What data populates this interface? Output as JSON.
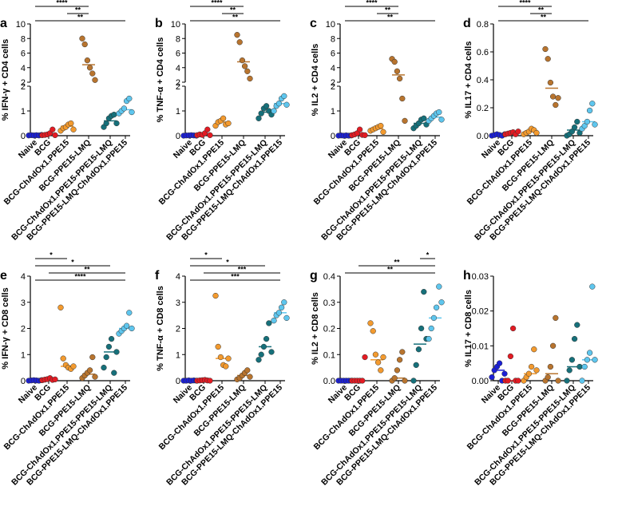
{
  "figure": {
    "groups": [
      "Naive",
      "BCG",
      "BCG-ChAdOx1.PPE15",
      "BCG-PPE15-LMQ",
      "BCG-ChAdOx1.PPE15-PPE15-LMQ",
      "BCG-PPE15-LMQ-ChAdOx1.PPE15"
    ],
    "group_colors": [
      "#1b1fd6",
      "#e31b23",
      "#f39a2e",
      "#b8742e",
      "#16707a",
      "#5ec6ee"
    ]
  },
  "chart_data": [
    {
      "type": "scatter",
      "panel": "a",
      "ylabel": "% IFN-γ + CD4 cells",
      "y_axis": {
        "break": true,
        "upper": [
          2,
          10
        ],
        "lower": [
          0,
          2
        ],
        "upper_ticks": [
          2,
          4,
          6,
          8,
          10
        ],
        "lower_ticks": [
          0,
          1,
          2
        ]
      },
      "series": [
        {
          "name": "Naive",
          "values": [
            0.01,
            0.02,
            0.01,
            0.02,
            0.01,
            0.03
          ],
          "mean": 0.02
        },
        {
          "name": "BCG",
          "values": [
            0.02,
            0.03,
            0.05,
            0.1,
            0.25,
            0.02
          ],
          "mean": 0.08
        },
        {
          "name": "BCG-ChAdOx1.PPE15",
          "values": [
            0.2,
            0.3,
            0.35,
            0.45,
            0.5,
            0.25
          ],
          "mean": 0.38
        },
        {
          "name": "BCG-PPE15-LMQ",
          "values": [
            8.0,
            7.2,
            5.0,
            4.0,
            3.2,
            2.3
          ],
          "mean": 4.4
        },
        {
          "name": "BCG-ChAdOx1.PPE15-PPE15-LMQ",
          "values": [
            0.35,
            0.5,
            0.7,
            0.8,
            0.85,
            0.5
          ],
          "mean": 0.6
        },
        {
          "name": "BCG-PPE15-LMQ-ChAdOx1.PPE15",
          "values": [
            0.9,
            1.0,
            1.1,
            1.4,
            1.5,
            0.95
          ],
          "mean": 1.05
        }
      ],
      "significance": [
        {
          "from": "Naive",
          "to": "BCG-PPE15-LMQ",
          "label": "****"
        },
        {
          "from": "BCG-ChAdOx1.PPE15",
          "to": "BCG-PPE15-LMQ",
          "label": "**"
        },
        {
          "from": "Naive",
          "to": "BCG-PPE15-LMQ-ChAdOx1.PPE15",
          "label": "**"
        }
      ]
    },
    {
      "type": "scatter",
      "panel": "b",
      "ylabel": "% TNF-α + CD4 cells",
      "y_axis": {
        "break": true,
        "upper": [
          2,
          10
        ],
        "lower": [
          0,
          2
        ],
        "upper_ticks": [
          2,
          4,
          6,
          8,
          10
        ],
        "lower_ticks": [
          0,
          1,
          2
        ]
      },
      "series": [
        {
          "name": "Naive",
          "values": [
            0.0,
            0.01,
            0.01,
            0.02,
            0.01,
            0.0
          ],
          "mean": 0.01
        },
        {
          "name": "BCG",
          "values": [
            0.02,
            0.05,
            0.03,
            0.1,
            0.25,
            0.02
          ],
          "mean": 0.07
        },
        {
          "name": "BCG-ChAdOx1.PPE15",
          "values": [
            0.4,
            0.55,
            0.6,
            0.7,
            0.45,
            0.5
          ],
          "mean": 0.55
        },
        {
          "name": "BCG-PPE15-LMQ",
          "values": [
            8.5,
            7.5,
            5.0,
            4.2,
            3.5,
            2.5
          ],
          "mean": 4.8
        },
        {
          "name": "BCG-ChAdOx1.PPE15-PPE15-LMQ",
          "values": [
            0.7,
            0.9,
            1.1,
            1.2,
            1.0,
            0.85
          ],
          "mean": 0.95
        },
        {
          "name": "BCG-PPE15-LMQ-ChAdOx1.PPE15",
          "values": [
            1.0,
            1.2,
            1.3,
            1.5,
            1.6,
            1.25
          ],
          "mean": 1.3
        }
      ],
      "significance": [
        {
          "from": "Naive",
          "to": "BCG-PPE15-LMQ",
          "label": "****"
        },
        {
          "from": "BCG-ChAdOx1.PPE15",
          "to": "BCG-PPE15-LMQ",
          "label": "**"
        },
        {
          "from": "Naive",
          "to": "BCG-PPE15-LMQ-ChAdOx1.PPE15",
          "label": "**"
        }
      ]
    },
    {
      "type": "scatter",
      "panel": "c",
      "ylabel": "% IL2 + CD4 cells",
      "y_axis": {
        "break": true,
        "upper": [
          2,
          10
        ],
        "lower": [
          0,
          2
        ],
        "upper_ticks": [
          2,
          4,
          6,
          8,
          10
        ],
        "lower_ticks": [
          0,
          1,
          2
        ]
      },
      "series": [
        {
          "name": "Naive",
          "values": [
            0.0,
            0.01,
            0.0,
            0.01,
            0.0,
            0.01
          ],
          "mean": 0.0
        },
        {
          "name": "BCG",
          "values": [
            0.02,
            0.05,
            0.1,
            0.25,
            0.03,
            0.02
          ],
          "mean": 0.07
        },
        {
          "name": "BCG-ChAdOx1.PPE15",
          "values": [
            0.2,
            0.25,
            0.3,
            0.35,
            0.4,
            0.15
          ],
          "mean": 0.28
        },
        {
          "name": "BCG-PPE15-LMQ",
          "values": [
            5.2,
            4.8,
            3.5,
            2.5,
            1.5,
            0.6
          ],
          "mean": 3.0
        },
        {
          "name": "BCG-ChAdOx1.PPE15-PPE15-LMQ",
          "values": [
            0.3,
            0.4,
            0.5,
            0.65,
            0.7,
            0.45
          ],
          "mean": 0.5
        },
        {
          "name": "BCG-PPE15-LMQ-ChAdOx1.PPE15",
          "values": [
            0.6,
            0.7,
            0.8,
            0.9,
            0.95,
            0.65
          ],
          "mean": 0.75
        }
      ],
      "significance": [
        {
          "from": "Naive",
          "to": "BCG-PPE15-LMQ",
          "label": "****"
        },
        {
          "from": "BCG-ChAdOx1.PPE15",
          "to": "BCG-PPE15-LMQ",
          "label": "**"
        },
        {
          "from": "Naive",
          "to": "BCG-PPE15-LMQ-ChAdOx1.PPE15",
          "label": "**"
        }
      ]
    },
    {
      "type": "scatter",
      "panel": "d",
      "ylabel": "% IL17 + CD4 cells",
      "y_axis": {
        "break": false,
        "range": [
          0,
          0.8
        ],
        "ticks": [
          0.0,
          0.2,
          0.4,
          0.6,
          0.8
        ]
      },
      "series": [
        {
          "name": "Naive",
          "values": [
            0.0,
            0.005,
            0.01,
            0.005,
            0.0,
            0.01
          ],
          "mean": 0.005
        },
        {
          "name": "BCG",
          "values": [
            0.01,
            0.015,
            0.02,
            0.025,
            0.01,
            0.03
          ],
          "mean": 0.02
        },
        {
          "name": "BCG-ChAdOx1.PPE15",
          "values": [
            0.01,
            0.02,
            0.03,
            0.05,
            0.04,
            0.02
          ],
          "mean": 0.03
        },
        {
          "name": "BCG-PPE15-LMQ",
          "values": [
            0.62,
            0.55,
            0.38,
            0.28,
            0.22,
            0.27
          ],
          "mean": 0.34
        },
        {
          "name": "BCG-ChAdOx1.PPE15-PPE15-LMQ",
          "values": [
            0.0,
            0.01,
            0.03,
            0.06,
            0.1,
            0.02
          ],
          "mean": 0.04
        },
        {
          "name": "BCG-PPE15-LMQ-ChAdOx1.PPE15",
          "values": [
            0.05,
            0.07,
            0.1,
            0.18,
            0.23,
            0.08
          ],
          "mean": 0.1
        }
      ],
      "significance": [
        {
          "from": "Naive",
          "to": "BCG-PPE15-LMQ",
          "label": "****"
        },
        {
          "from": "BCG-ChAdOx1.PPE15",
          "to": "BCG-PPE15-LMQ",
          "label": "**"
        },
        {
          "from": "Naive",
          "to": "BCG-PPE15-LMQ-ChAdOx1.PPE15",
          "label": "**"
        }
      ]
    },
    {
      "type": "scatter",
      "panel": "e",
      "ylabel": "% IFN-γ + CD8 cells",
      "y_axis": {
        "break": false,
        "range": [
          0,
          4
        ],
        "ticks": [
          0,
          1,
          2,
          3,
          4
        ]
      },
      "series": [
        {
          "name": "Naive",
          "values": [
            0.0,
            0.01,
            0.02,
            0.01,
            0.0,
            0.02
          ],
          "mean": 0.01
        },
        {
          "name": "BCG",
          "values": [
            0.02,
            0.04,
            0.06,
            0.1,
            0.03,
            0.05
          ],
          "mean": 0.05
        },
        {
          "name": "BCG-ChAdOx1.PPE15",
          "values": [
            2.8,
            0.85,
            0.6,
            0.5,
            0.45,
            0.55
          ],
          "mean": 0.55
        },
        {
          "name": "BCG-PPE15-LMQ",
          "values": [
            0.1,
            0.2,
            0.3,
            0.4,
            0.9,
            0.15
          ],
          "mean": 0.25
        },
        {
          "name": "BCG-ChAdOx1.PPE15-PPE15-LMQ",
          "values": [
            0.5,
            0.9,
            1.3,
            1.6,
            0.3,
            1.1
          ],
          "mean": 1.1
        },
        {
          "name": "BCG-PPE15-LMQ-ChAdOx1.PPE15",
          "values": [
            1.8,
            1.9,
            2.0,
            2.1,
            2.6,
            2.0
          ],
          "mean": 2.0
        }
      ],
      "significance": [
        {
          "from": "Naive",
          "to": "BCG-ChAdOx1.PPE15",
          "label": "*"
        },
        {
          "from": "Naive",
          "to": "BCG-ChAdOx1.PPE15-PPE15-LMQ",
          "label": "*"
        },
        {
          "from": "BCG",
          "to": "BCG-PPE15-LMQ-ChAdOx1.PPE15",
          "label": "**"
        },
        {
          "from": "Naive",
          "to": "BCG-PPE15-LMQ-ChAdOx1.PPE15",
          "label": "****"
        }
      ]
    },
    {
      "type": "scatter",
      "panel": "f",
      "ylabel": "% TNF-α + CD8 cells",
      "y_axis": {
        "break": false,
        "range": [
          0,
          4
        ],
        "ticks": [
          0,
          1,
          2,
          3,
          4
        ]
      },
      "series": [
        {
          "name": "Naive",
          "values": [
            0.0,
            0.0,
            0.01,
            0.0,
            0.01,
            0.0
          ],
          "mean": 0.0
        },
        {
          "name": "BCG",
          "values": [
            0.0,
            0.01,
            0.02,
            0.03,
            0.01,
            0.0
          ],
          "mean": 0.01
        },
        {
          "name": "BCG-ChAdOx1.PPE15",
          "values": [
            3.25,
            1.3,
            0.9,
            0.6,
            0.55,
            0.85
          ],
          "mean": 0.85
        },
        {
          "name": "BCG-PPE15-LMQ",
          "values": [
            0.05,
            0.1,
            0.2,
            0.3,
            0.4,
            0.15
          ],
          "mean": 0.2
        },
        {
          "name": "BCG-ChAdOx1.PPE15-PPE15-LMQ",
          "values": [
            0.8,
            1.0,
            1.3,
            1.6,
            2.2,
            1.1
          ],
          "mean": 1.3
        },
        {
          "name": "BCG-PPE15-LMQ-ChAdOx1.PPE15",
          "values": [
            2.3,
            2.5,
            2.6,
            2.8,
            3.0,
            2.4
          ],
          "mean": 2.6
        }
      ],
      "significance": [
        {
          "from": "Naive",
          "to": "BCG-ChAdOx1.PPE15",
          "label": "*"
        },
        {
          "from": "Naive",
          "to": "BCG-ChAdOx1.PPE15-PPE15-LMQ",
          "label": "*"
        },
        {
          "from": "BCG",
          "to": "BCG-PPE15-LMQ-ChAdOx1.PPE15",
          "label": "***"
        },
        {
          "from": "Naive",
          "to": "BCG-PPE15-LMQ-ChAdOx1.PPE15",
          "label": "***"
        }
      ]
    },
    {
      "type": "scatter",
      "panel": "g",
      "ylabel": "% IL2 + CD8 cells",
      "y_axis": {
        "break": false,
        "range": [
          0,
          0.4
        ],
        "ticks": [
          0.0,
          0.1,
          0.2,
          0.3,
          0.4
        ]
      },
      "series": [
        {
          "name": "Naive",
          "values": [
            0.0,
            0.0,
            0.0,
            0.0,
            0.0,
            0.0
          ],
          "mean": 0.0
        },
        {
          "name": "BCG",
          "values": [
            0.0,
            0.0,
            0.0,
            0.0,
            0.0,
            0.09
          ],
          "mean": 0.0
        },
        {
          "name": "BCG-ChAdOx1.PPE15",
          "values": [
            0.22,
            0.19,
            0.1,
            0.07,
            0.04,
            0.09
          ],
          "mean": 0.08
        },
        {
          "name": "BCG-PPE15-LMQ",
          "values": [
            0.0,
            0.01,
            0.04,
            0.08,
            0.11,
            0.0
          ],
          "mean": 0.01
        },
        {
          "name": "BCG-ChAdOx1.PPE15-PPE15-LMQ",
          "values": [
            0.0,
            0.06,
            0.12,
            0.2,
            0.34,
            0.16
          ],
          "mean": 0.14
        },
        {
          "name": "BCG-PPE15-LMQ-ChAdOx1.PPE15",
          "values": [
            0.16,
            0.2,
            0.24,
            0.28,
            0.36,
            0.3
          ],
          "mean": 0.24
        }
      ],
      "significance": [
        {
          "from": "BCG-ChAdOx1.PPE15-PPE15-LMQ",
          "to": "BCG-PPE15-LMQ-ChAdOx1.PPE15",
          "label": "*"
        },
        {
          "from": "BCG",
          "to": "BCG-PPE15-LMQ-ChAdOx1.PPE15",
          "label": "**"
        },
        {
          "from": "Naive",
          "to": "BCG-PPE15-LMQ-ChAdOx1.PPE15",
          "label": "**"
        }
      ]
    },
    {
      "type": "scatter",
      "panel": "h",
      "ylabel": "% IL17 + CD8 cells",
      "y_axis": {
        "break": false,
        "range": [
          0,
          0.03
        ],
        "ticks": [
          0.0,
          0.01,
          0.02,
          0.03
        ]
      },
      "series": [
        {
          "name": "Naive",
          "values": [
            0.001,
            0.003,
            0.004,
            0.005,
            0.0,
            0.002
          ],
          "mean": 0.003
        },
        {
          "name": "BCG",
          "values": [
            0.0,
            0.0,
            0.007,
            0.015,
            0.0,
            0.0
          ],
          "mean": 0.0
        },
        {
          "name": "BCG-ChAdOx1.PPE15",
          "values": [
            0.0,
            0.001,
            0.002,
            0.004,
            0.009,
            0.003
          ],
          "mean": 0.002
        },
        {
          "name": "BCG-PPE15-LMQ",
          "values": [
            0.0,
            0.001,
            0.004,
            0.01,
            0.018,
            0.0
          ],
          "mean": 0.002
        },
        {
          "name": "BCG-ChAdOx1.PPE15-PPE15-LMQ",
          "values": [
            0.0,
            0.003,
            0.006,
            0.012,
            0.016,
            0.004
          ],
          "mean": 0.004
        },
        {
          "name": "BCG-PPE15-LMQ-ChAdOx1.PPE15",
          "values": [
            0.0,
            0.004,
            0.006,
            0.008,
            0.027,
            0.006
          ],
          "mean": 0.006
        }
      ],
      "significance": []
    }
  ]
}
